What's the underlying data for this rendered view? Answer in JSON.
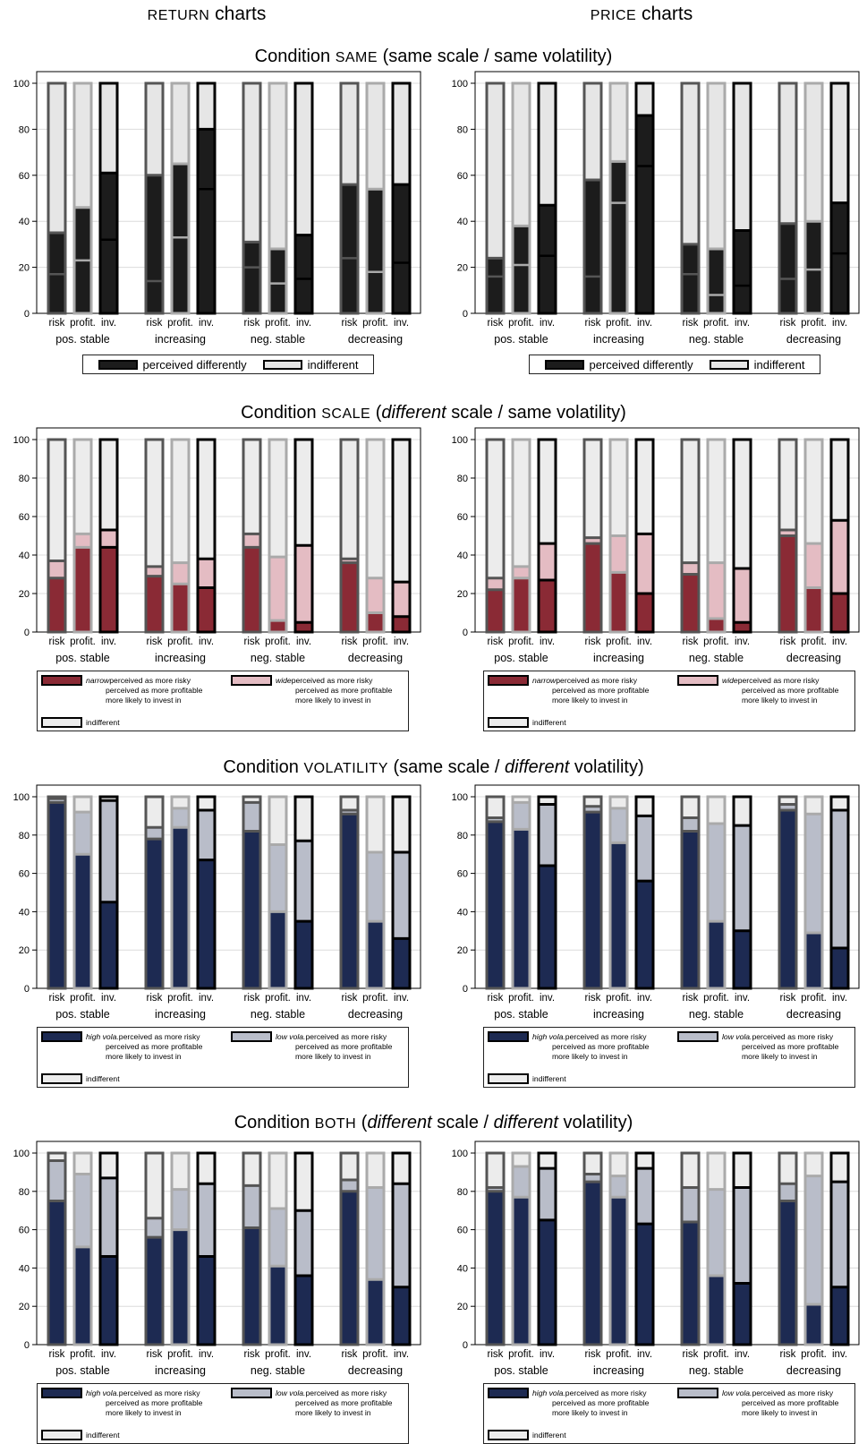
{
  "columns": [
    {
      "sc": "RETURN",
      "rest": " charts"
    },
    {
      "sc": "PRICE",
      "rest": " charts"
    }
  ],
  "conditions": [
    {
      "id": "same",
      "prefix": "Condition ",
      "sc": "SAME",
      "suffix_plain": " (same scale / same volatility)",
      "suffix_italic_parts": []
    },
    {
      "id": "scale",
      "prefix": "Condition ",
      "sc": "SCALE",
      "suffix_parts": [
        [
          " (",
          false
        ],
        [
          "different",
          true
        ],
        [
          " scale / same volatility)",
          false
        ]
      ]
    },
    {
      "id": "volatility",
      "prefix": "Condition ",
      "sc": "VOLATILITY",
      "suffix_parts": [
        [
          " (same scale / ",
          false
        ],
        [
          "different",
          true
        ],
        [
          " volatility)",
          false
        ]
      ]
    },
    {
      "id": "both",
      "prefix": "Condition ",
      "sc": "BOTH",
      "suffix_parts": [
        [
          " (",
          false
        ],
        [
          "different",
          true
        ],
        [
          " scale / ",
          false
        ],
        [
          "different",
          true
        ],
        [
          " volatility)",
          false
        ]
      ]
    }
  ],
  "legends": {
    "same": {
      "items": [
        {
          "label": "perceived differently",
          "fill": "#1c1c1c",
          "stroke": "#000"
        },
        {
          "label": "indifferent",
          "fill": "#e6e6e6",
          "stroke": "#000"
        }
      ]
    },
    "scale": {
      "a_italic": "narrow",
      "b_italic": "wide",
      "lines": [
        "perceived as more risky",
        "perceived as more profitable",
        "more likely to invest in"
      ],
      "indiff": "indifferent",
      "a_fill": "#8a2a35",
      "b_fill": "#e4bcc3"
    },
    "vol": {
      "a_italic": "high vola.",
      "b_italic": "low vola.",
      "lines": [
        "perceived as more risky",
        "perceived as more profitable",
        "more likely to invest in"
      ],
      "indiff": "indifferent",
      "a_fill": "#1d2a52",
      "b_fill": "#b9bdc9"
    }
  },
  "palette": {
    "dark": "#1c1c1c",
    "light": "#e6e6e6",
    "red": "#8a2a35",
    "pink": "#e4bcc3",
    "navy": "#1d2a52",
    "lightblue": "#b9bdc9",
    "indiff": "#ececec"
  },
  "chart_data": [
    {
      "type": "bar",
      "condition": "same",
      "chart": "return",
      "groups": [
        "pos. stable",
        "increasing",
        "neg. stable",
        "decreasing"
      ],
      "bars": [
        "risk",
        "profit.",
        "inv."
      ],
      "ylim": [
        0,
        100
      ],
      "yticks": [
        0,
        20,
        40,
        60,
        80,
        100
      ],
      "perceived_differently": [
        [
          35,
          46,
          61
        ],
        [
          60,
          65,
          80
        ],
        [
          31,
          28,
          34
        ],
        [
          56,
          54,
          56
        ]
      ],
      "inner_line": [
        [
          17,
          23,
          32
        ],
        [
          14,
          33,
          54
        ],
        [
          20,
          13,
          15
        ],
        [
          24,
          18,
          22
        ]
      ]
    },
    {
      "type": "bar",
      "condition": "same",
      "chart": "price",
      "groups": [
        "pos. stable",
        "increasing",
        "neg. stable",
        "decreasing"
      ],
      "bars": [
        "risk",
        "profit.",
        "inv."
      ],
      "ylim": [
        0,
        100
      ],
      "yticks": [
        0,
        20,
        40,
        60,
        80,
        100
      ],
      "perceived_differently": [
        [
          24,
          38,
          47
        ],
        [
          58,
          66,
          86
        ],
        [
          30,
          28,
          36
        ],
        [
          39,
          40,
          48
        ]
      ],
      "inner_line": [
        [
          16,
          21,
          25
        ],
        [
          16,
          48,
          64
        ],
        [
          17,
          8,
          12
        ],
        [
          15,
          19,
          26
        ]
      ]
    },
    {
      "type": "bar",
      "condition": "scale",
      "chart": "return",
      "groups": [
        "pos. stable",
        "increasing",
        "neg. stable",
        "decreasing"
      ],
      "bars": [
        "risk",
        "profit.",
        "inv."
      ],
      "ylim": [
        0,
        100
      ],
      "yticks": [
        0,
        20,
        40,
        60,
        80,
        100
      ],
      "narrow": [
        [
          28,
          44,
          44
        ],
        [
          29,
          25,
          23
        ],
        [
          44,
          6,
          5
        ],
        [
          36,
          10,
          8
        ]
      ],
      "wide": [
        [
          9,
          7,
          9
        ],
        [
          5,
          11,
          15
        ],
        [
          7,
          33,
          40
        ],
        [
          2,
          18,
          18
        ]
      ]
    },
    {
      "type": "bar",
      "condition": "scale",
      "chart": "price",
      "groups": [
        "pos. stable",
        "increasing",
        "neg. stable",
        "decreasing"
      ],
      "bars": [
        "risk",
        "profit.",
        "inv."
      ],
      "ylim": [
        0,
        100
      ],
      "yticks": [
        0,
        20,
        40,
        60,
        80,
        100
      ],
      "narrow": [
        [
          22,
          28,
          27
        ],
        [
          46,
          31,
          20
        ],
        [
          30,
          7,
          5
        ],
        [
          50,
          23,
          20
        ]
      ],
      "wide": [
        [
          6,
          6,
          19
        ],
        [
          3,
          19,
          31
        ],
        [
          6,
          29,
          28
        ],
        [
          3,
          23,
          38
        ]
      ]
    },
    {
      "type": "bar",
      "condition": "volatility",
      "chart": "return",
      "groups": [
        "pos. stable",
        "increasing",
        "neg. stable",
        "decreasing"
      ],
      "bars": [
        "risk",
        "profit.",
        "inv."
      ],
      "ylim": [
        0,
        100
      ],
      "yticks": [
        0,
        20,
        40,
        60,
        80,
        100
      ],
      "high_vola": [
        [
          97,
          70,
          45
        ],
        [
          78,
          84,
          67
        ],
        [
          82,
          40,
          35
        ],
        [
          91,
          35,
          26
        ]
      ],
      "low_vola": [
        [
          2,
          22,
          53
        ],
        [
          6,
          10,
          26
        ],
        [
          15,
          35,
          42
        ],
        [
          2,
          36,
          45
        ]
      ]
    },
    {
      "type": "bar",
      "condition": "volatility",
      "chart": "price",
      "groups": [
        "pos. stable",
        "increasing",
        "neg. stable",
        "decreasing"
      ],
      "bars": [
        "risk",
        "profit.",
        "inv."
      ],
      "ylim": [
        0,
        100
      ],
      "yticks": [
        0,
        20,
        40,
        60,
        80,
        100
      ],
      "high_vola": [
        [
          87,
          83,
          64
        ],
        [
          92,
          76,
          56
        ],
        [
          82,
          35,
          30
        ],
        [
          93,
          29,
          21
        ]
      ],
      "low_vola": [
        [
          2,
          14,
          32
        ],
        [
          3,
          18,
          34
        ],
        [
          7,
          51,
          55
        ],
        [
          3,
          62,
          72
        ]
      ]
    },
    {
      "type": "bar",
      "condition": "both",
      "chart": "return",
      "groups": [
        "pos. stable",
        "increasing",
        "neg. stable",
        "decreasing"
      ],
      "bars": [
        "risk",
        "profit.",
        "inv."
      ],
      "ylim": [
        0,
        100
      ],
      "yticks": [
        0,
        20,
        40,
        60,
        80,
        100
      ],
      "high_vola": [
        [
          75,
          51,
          46
        ],
        [
          56,
          60,
          46
        ],
        [
          61,
          41,
          36
        ],
        [
          80,
          34,
          30
        ]
      ],
      "low_vola": [
        [
          21,
          38,
          41
        ],
        [
          10,
          21,
          38
        ],
        [
          22,
          30,
          34
        ],
        [
          6,
          48,
          54
        ]
      ]
    },
    {
      "type": "bar",
      "condition": "both",
      "chart": "price",
      "groups": [
        "pos. stable",
        "increasing",
        "neg. stable",
        "decreasing"
      ],
      "bars": [
        "risk",
        "profit.",
        "inv."
      ],
      "ylim": [
        0,
        100
      ],
      "yticks": [
        0,
        20,
        40,
        60,
        80,
        100
      ],
      "high_vola": [
        [
          80,
          77,
          65
        ],
        [
          85,
          77,
          63
        ],
        [
          64,
          36,
          32
        ],
        [
          75,
          21,
          30
        ]
      ],
      "low_vola": [
        [
          2,
          16,
          27
        ],
        [
          4,
          11,
          29
        ],
        [
          18,
          45,
          50
        ],
        [
          9,
          67,
          55
        ]
      ]
    }
  ]
}
